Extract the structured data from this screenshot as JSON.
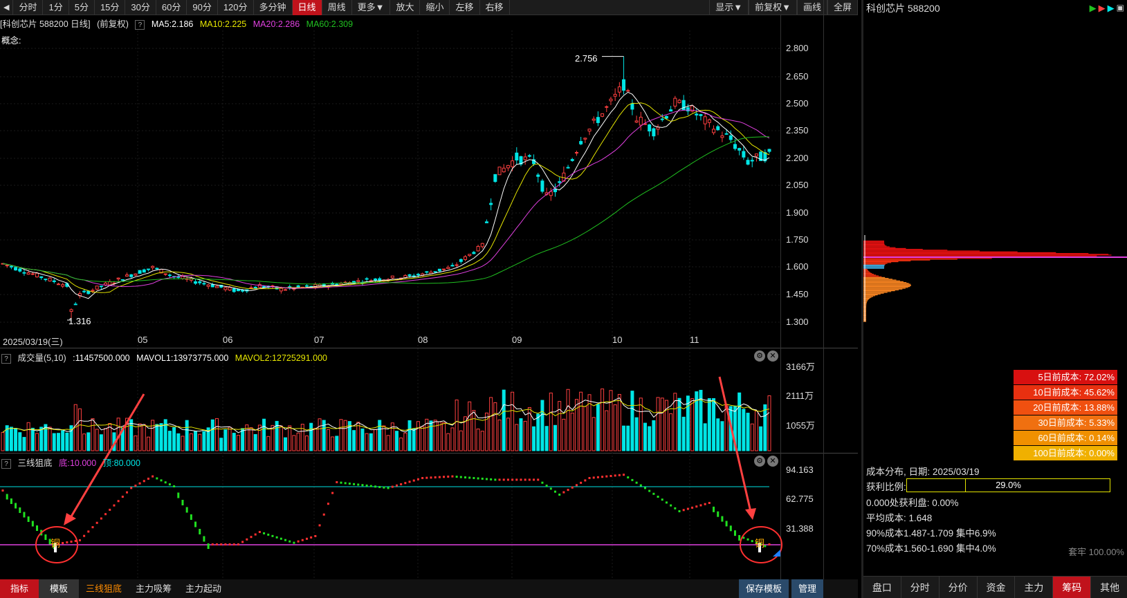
{
  "toolbar": {
    "items": [
      "分时",
      "1分",
      "5分",
      "15分",
      "30分",
      "60分",
      "90分",
      "120分",
      "多分钟",
      "日线",
      "周线",
      "更多▼",
      "放大",
      "缩小",
      "左移",
      "右移"
    ],
    "active": "日线",
    "right_items": [
      "显示▼",
      "前复权▼",
      "画线",
      "全屏"
    ]
  },
  "main_chart": {
    "info": {
      "title": "[科创芯片 588200 日线]",
      "adj": "(前复权)",
      "ma5": "MA5:2.186",
      "ma10": "MA10:2.225",
      "ma20": "MA20:2.286",
      "ma60": "MA60:2.309"
    },
    "concept_label": "概念:",
    "y_ticks": [
      "2.800",
      "2.650",
      "2.500",
      "2.350",
      "2.200",
      "2.050",
      "1.900",
      "1.750",
      "1.600",
      "1.450",
      "1.300"
    ],
    "high_label": "2.756",
    "low_label": "1.316",
    "x_labels": [
      "2025/03/19(三)",
      "05",
      "06",
      "07",
      "08",
      "09",
      "10",
      "11"
    ],
    "colors": {
      "up": "#ff4040",
      "down": "#00e5e5",
      "ma5": "#ffffff",
      "ma10": "#e6e600",
      "ma20": "#e040e0",
      "ma60": "#20c020"
    }
  },
  "volume_panel": {
    "title": "成交量(5,10)",
    "vol": ":11457500.000",
    "mavol1": "MAVOL1:13973775.000",
    "mavol2": "MAVOL2:12725291.000",
    "y_ticks": [
      "3166万",
      "2111万",
      "1055万"
    ]
  },
  "indicator_panel": {
    "title": "三线狙底",
    "bottom": "底:10.000",
    "top": "顶:80.000",
    "y_ticks": [
      "94.163",
      "62.775",
      "31.388"
    ],
    "marker_text": "铜"
  },
  "bottom_tabs": [
    "指标",
    "模板",
    "三线狙底",
    "主力吸筹",
    "主力起动"
  ],
  "bottom_right": [
    "保存模板",
    "管理"
  ],
  "right_panel": {
    "title": "科创芯片 588200",
    "cost_rows": [
      {
        "label": "5日前成本: 72.02%",
        "color": "#d81010"
      },
      {
        "label": "10日前成本: 45.62%",
        "color": "#e83010"
      },
      {
        "label": "20日前成本: 13.88%",
        "color": "#f05010"
      },
      {
        "label": "30日前成本: 5.33%",
        "color": "#f07010"
      },
      {
        "label": "60日前成本: 0.14%",
        "color": "#f09000"
      },
      {
        "label": "100日前成本: 0.00%",
        "color": "#f0b000"
      }
    ],
    "dist_title": "成本分布, 日期: 2025/03/19",
    "profit_label": "获利比例:",
    "profit_value": "29.0%",
    "profit_fraction": 0.29,
    "lines": [
      "0.000处获利盘: 0.00%",
      "平均成本: 1.648",
      "90%成本1.487-1.709 集中6.9%",
      "70%成本1.560-1.690 集中4.0%"
    ],
    "steady": "套牢 100.00%",
    "tabs": [
      "盘口",
      "分时",
      "分价",
      "资金",
      "主力",
      "筹码",
      "其他"
    ],
    "active_tab": "筹码"
  }
}
